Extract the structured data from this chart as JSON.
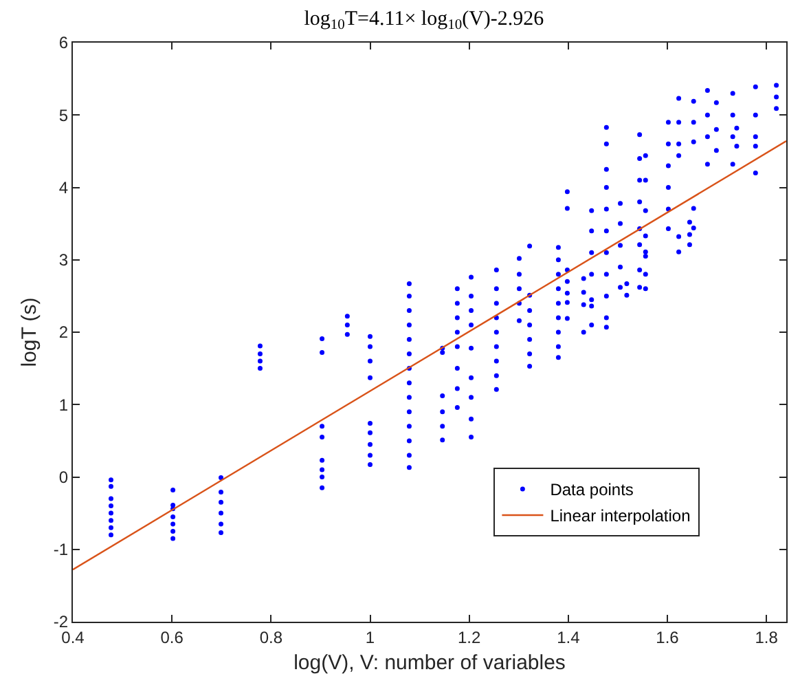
{
  "chart_data": {
    "type": "scatter",
    "title": "log$_{10}$T=4.11× log$_{10}$(V)-2.926",
    "xlabel": "log(V), V: number of variables",
    "ylabel": "logT (s)",
    "xlim": [
      0.4,
      1.84
    ],
    "ylim": [
      -2,
      6
    ],
    "xticks": [
      0.4,
      0.6,
      0.8,
      1,
      1.2,
      1.4,
      1.6,
      1.8
    ],
    "yticks": [
      -2,
      -1,
      0,
      1,
      2,
      3,
      4,
      5,
      6
    ],
    "grid": false,
    "legend": "bottom right",
    "series": [
      {
        "name": "Data points",
        "marker": "circle",
        "color": "#0000ff",
        "x": [
          0.477,
          0.477,
          0.477,
          0.477,
          0.477,
          0.477,
          0.477,
          0.477,
          0.602,
          0.602,
          0.602,
          0.602,
          0.602,
          0.602,
          0.602,
          0.699,
          0.699,
          0.699,
          0.699,
          0.699,
          0.699,
          0.778,
          0.778,
          0.778,
          0.778,
          0.903,
          0.903,
          0.903,
          0.903,
          0.903,
          0.903,
          0.903,
          0.903,
          0.954,
          0.954,
          0.954,
          1.0,
          1.0,
          1.0,
          1.0,
          1.0,
          1.0,
          1.0,
          1.0,
          1.0,
          1.079,
          1.079,
          1.079,
          1.079,
          1.079,
          1.079,
          1.079,
          1.079,
          1.079,
          1.079,
          1.079,
          1.079,
          1.079,
          1.079,
          1.146,
          1.146,
          1.146,
          1.146,
          1.146,
          1.146,
          1.176,
          1.176,
          1.176,
          1.176,
          1.176,
          1.176,
          1.176,
          1.176,
          1.204,
          1.204,
          1.204,
          1.204,
          1.204,
          1.204,
          1.204,
          1.204,
          1.204,
          1.255,
          1.255,
          1.255,
          1.255,
          1.255,
          1.255,
          1.255,
          1.255,
          1.255,
          1.301,
          1.301,
          1.301,
          1.301,
          1.301,
          1.322,
          1.322,
          1.322,
          1.322,
          1.322,
          1.322,
          1.322,
          1.38,
          1.38,
          1.38,
          1.38,
          1.38,
          1.38,
          1.38,
          1.38,
          1.38,
          1.398,
          1.398,
          1.398,
          1.398,
          1.398,
          1.398,
          1.398,
          1.431,
          1.431,
          1.431,
          1.431,
          1.447,
          1.447,
          1.447,
          1.447,
          1.447,
          1.447,
          1.447,
          1.477,
          1.477,
          1.477,
          1.477,
          1.477,
          1.477,
          1.477,
          1.477,
          1.477,
          1.477,
          1.477,
          1.505,
          1.505,
          1.505,
          1.505,
          1.505,
          1.518,
          1.518,
          1.544,
          1.544,
          1.544,
          1.544,
          1.544,
          1.544,
          1.544,
          1.544,
          1.556,
          1.556,
          1.556,
          1.556,
          1.556,
          1.556,
          1.556,
          1.556,
          1.602,
          1.602,
          1.602,
          1.602,
          1.602,
          1.602,
          1.623,
          1.623,
          1.623,
          1.623,
          1.623,
          1.623,
          1.645,
          1.645,
          1.645,
          1.653,
          1.653,
          1.653,
          1.653,
          1.653,
          1.681,
          1.681,
          1.681,
          1.681,
          1.699,
          1.699,
          1.699,
          1.732,
          1.732,
          1.732,
          1.732,
          1.74,
          1.74,
          1.778,
          1.778,
          1.778,
          1.778,
          1.778,
          1.82,
          1.82,
          1.82
        ],
        "values": [
          -0.04,
          -0.13,
          -0.3,
          -0.4,
          -0.5,
          -0.6,
          -0.7,
          -0.8,
          -0.18,
          -0.39,
          -0.44,
          -0.55,
          -0.65,
          -0.75,
          -0.85,
          -0.01,
          -0.21,
          -0.35,
          -0.5,
          -0.65,
          -0.77,
          1.81,
          1.7,
          1.6,
          1.5,
          1.91,
          1.72,
          0.7,
          0.55,
          0.23,
          0.1,
          0,
          -0.15,
          2.22,
          2.1,
          1.97,
          1.94,
          1.8,
          1.6,
          1.37,
          0.74,
          0.61,
          0.45,
          0.3,
          0.17,
          2.67,
          2.5,
          2.3,
          2.1,
          1.9,
          1.7,
          1.5,
          1.3,
          1.1,
          0.9,
          0.7,
          0.5,
          0.3,
          0.13,
          1.78,
          1.72,
          1.12,
          0.9,
          0.7,
          0.51,
          2.6,
          2.4,
          2.2,
          2.0,
          1.8,
          1.5,
          1.22,
          0.96,
          2.76,
          2.5,
          2.3,
          2.1,
          1.78,
          1.37,
          1.1,
          0.8,
          0.55,
          2.86,
          2.6,
          2.4,
          2.2,
          2.0,
          1.8,
          1.6,
          1.4,
          1.21,
          3.02,
          2.8,
          2.6,
          2.4,
          2.16,
          3.19,
          2.51,
          2.3,
          2.1,
          1.9,
          1.7,
          1.53,
          3.17,
          3.0,
          2.8,
          2.6,
          2.4,
          2.2,
          2.0,
          1.8,
          1.65,
          3.94,
          3.71,
          2.86,
          2.7,
          2.54,
          2.41,
          2.19,
          2.74,
          2.55,
          2.38,
          2.0,
          3.68,
          3.4,
          3.1,
          2.8,
          2.45,
          2.36,
          2.1,
          4.83,
          4.6,
          4.25,
          4.0,
          3.7,
          3.4,
          3.1,
          2.8,
          2.5,
          2.2,
          2.07,
          3.78,
          3.5,
          3.2,
          2.9,
          2.62,
          2.67,
          2.51,
          4.73,
          4.4,
          4.1,
          3.8,
          3.43,
          3.21,
          2.86,
          2.62,
          4.44,
          4.1,
          3.68,
          3.33,
          3.11,
          3.05,
          2.8,
          2.6,
          4.9,
          4.6,
          4.3,
          4.0,
          3.7,
          3.43,
          5.23,
          4.9,
          4.6,
          4.44,
          3.32,
          3.11,
          3.52,
          3.35,
          3.21,
          5.19,
          4.9,
          4.63,
          3.71,
          3.44,
          5.34,
          5.0,
          4.7,
          4.32,
          5.17,
          4.8,
          4.51,
          5.3,
          5.0,
          4.7,
          4.32,
          4.82,
          4.57,
          5.39,
          5.0,
          4.7,
          4.57,
          4.2,
          5.41,
          5.25,
          5.09
        ]
      },
      {
        "name": "Linear interpolation",
        "type": "line",
        "marker": "none",
        "line_style": "solid",
        "color": "#d95319",
        "x": [
          0.4,
          1.84
        ],
        "values": [
          -1.28,
          4.64
        ]
      }
    ]
  }
}
